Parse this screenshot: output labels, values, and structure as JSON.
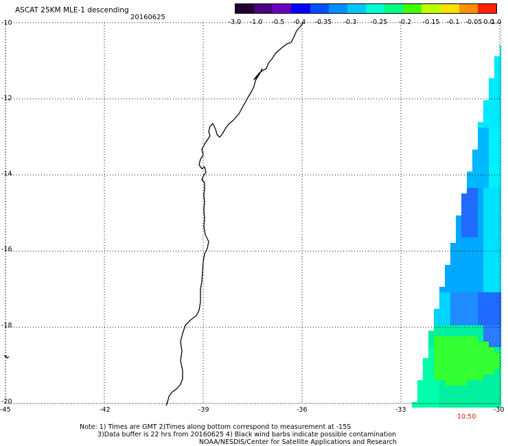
{
  "header": {
    "title": "ASCAT 25KM MLE-1 descending",
    "date": "20160625"
  },
  "colorbar": {
    "tick_labels": [
      "-3.0",
      "-1.0",
      "-0.5",
      "-0.4",
      "-0.35",
      "-0.3",
      "-0.25",
      "-0.2",
      "-0.15",
      "-0.1",
      "-0.05",
      "0.0",
      "1.0"
    ],
    "colors": [
      "#200030",
      "#4a0080",
      "#6a00c0",
      "#0000ff",
      "#0050ff",
      "#0090ff",
      "#00c8ff",
      "#00ffd0",
      "#00ff80",
      "#40ff00",
      "#c0ff00",
      "#ffe000",
      "#ff9000",
      "#ff2000"
    ]
  },
  "map": {
    "lat_labels": [
      "-10",
      "-12",
      "-14",
      "-16",
      "-18",
      "-20"
    ],
    "lon_labels": [
      "-45",
      "-42",
      "-39",
      "-36",
      "-33",
      "-30"
    ],
    "time_label": "10:50"
  },
  "footer": {
    "note_line1": "Note: 1) Times are GMT 2)Times along bottom correspond to measurement at -15S",
    "note_line2": "3)Data buffer is 22 hrs from 20160625 4) Black wind barbs indicate possible contamination",
    "credit": "NOAA/NESDIS/Center for Satellite Applications and Research"
  }
}
